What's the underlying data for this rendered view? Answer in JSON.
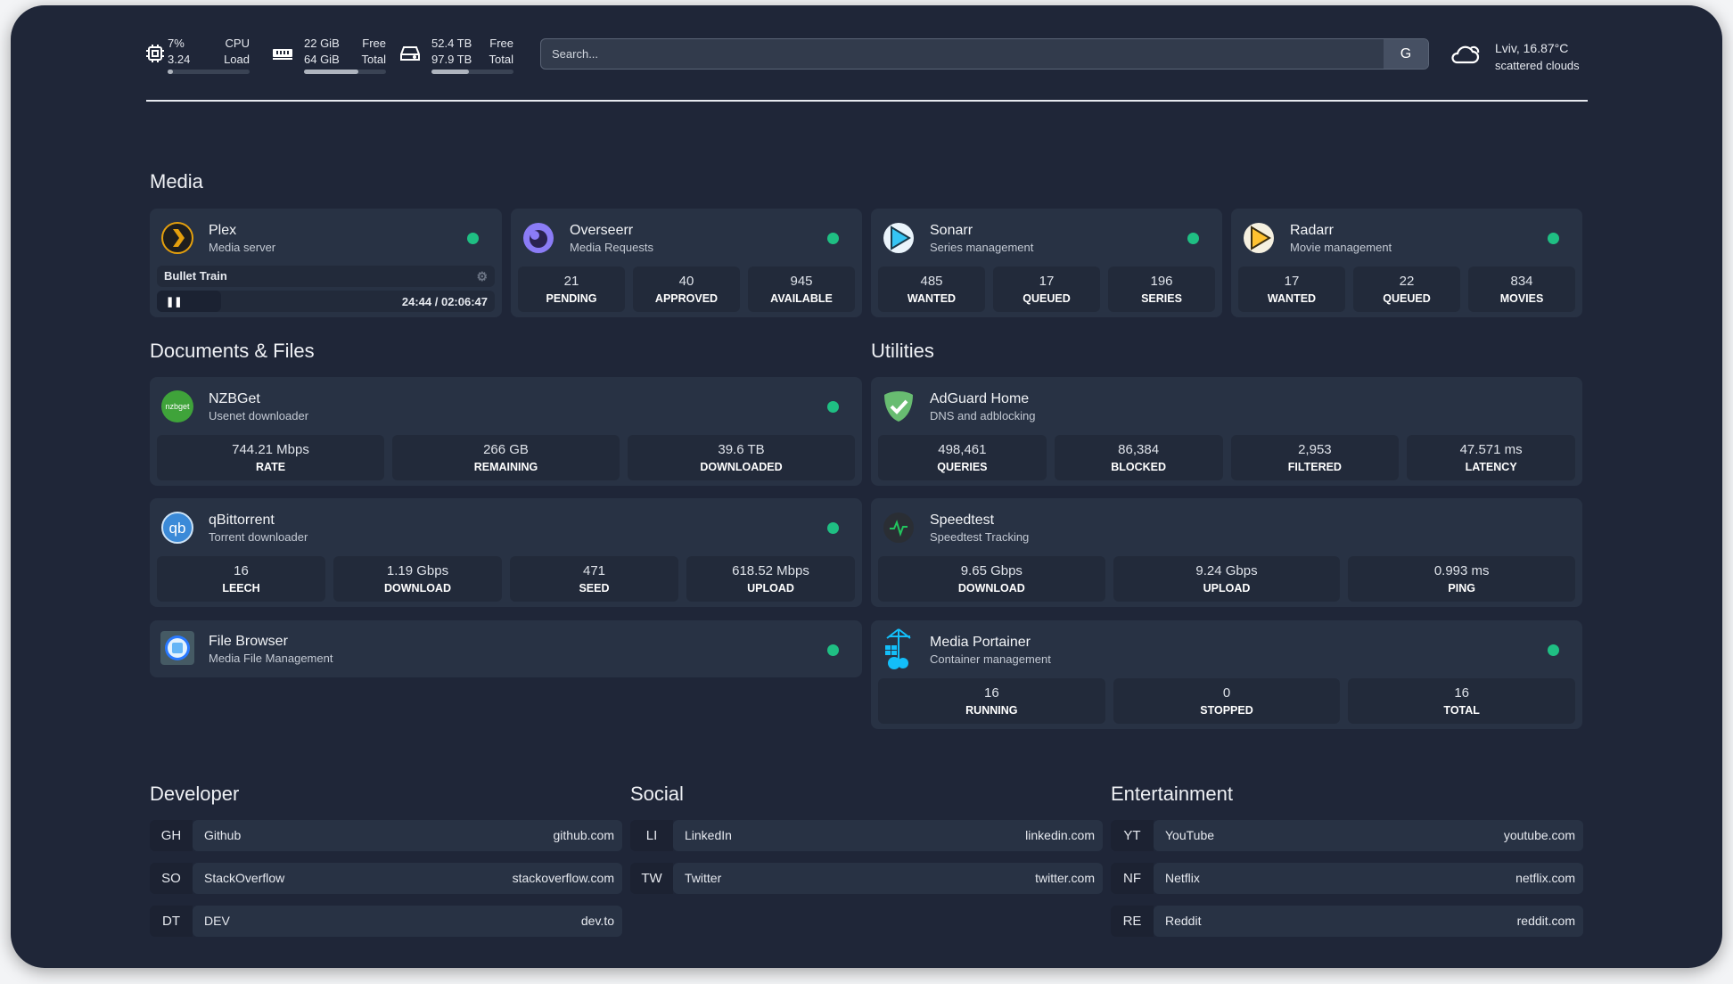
{
  "system": {
    "cpu": {
      "icon": "cpu-icon",
      "top_value": "7%",
      "top_label": "CPU",
      "bottom_value": "3.24",
      "bottom_label": "Load",
      "usage_percent": 7
    },
    "memory": {
      "icon": "memory-icon",
      "top_value": "22 GiB",
      "top_label": "Free",
      "bottom_value": "64 GiB",
      "bottom_label": "Total",
      "usage_percent": 66
    },
    "disk": {
      "icon": "disk-icon",
      "top_value": "52.4 TB",
      "top_label": "Free",
      "bottom_value": "97.9 TB",
      "bottom_label": "Total",
      "usage_percent": 46
    }
  },
  "search": {
    "placeholder": "Search...",
    "provider_label": "G"
  },
  "weather": {
    "icon": "cloud-icon",
    "location_temp": "Lviv, 16.87°C",
    "condition": "scattered clouds"
  },
  "status_color": "#1fbf83",
  "sections": {
    "media": "Media",
    "docs": "Documents & Files",
    "utilities": "Utilities",
    "developer": "Developer",
    "social": "Social",
    "entertainment": "Entertainment"
  },
  "media": [
    {
      "name": "Plex",
      "sub": "Media server",
      "now_playing": {
        "title": "Bullet Train",
        "time": "24:44 / 02:06:47",
        "progress_percent": 19
      }
    },
    {
      "name": "Overseerr",
      "sub": "Media Requests",
      "stats": [
        {
          "v": "21",
          "l": "PENDING"
        },
        {
          "v": "40",
          "l": "APPROVED"
        },
        {
          "v": "945",
          "l": "AVAILABLE"
        }
      ]
    },
    {
      "name": "Sonarr",
      "sub": "Series management",
      "stats": [
        {
          "v": "485",
          "l": "WANTED"
        },
        {
          "v": "17",
          "l": "QUEUED"
        },
        {
          "v": "196",
          "l": "SERIES"
        }
      ]
    },
    {
      "name": "Radarr",
      "sub": "Movie management",
      "stats": [
        {
          "v": "17",
          "l": "WANTED"
        },
        {
          "v": "22",
          "l": "QUEUED"
        },
        {
          "v": "834",
          "l": "MOVIES"
        }
      ]
    }
  ],
  "docs": [
    {
      "name": "NZBGet",
      "sub": "Usenet downloader",
      "icon_text": "nzbget",
      "stats": [
        {
          "v": "744.21 Mbps",
          "l": "RATE"
        },
        {
          "v": "266 GB",
          "l": "REMAINING"
        },
        {
          "v": "39.6 TB",
          "l": "DOWNLOADED"
        }
      ]
    },
    {
      "name": "qBittorrent",
      "sub": "Torrent downloader",
      "icon_text": "qb",
      "stats": [
        {
          "v": "16",
          "l": "LEECH"
        },
        {
          "v": "1.19 Gbps",
          "l": "DOWNLOAD"
        },
        {
          "v": "471",
          "l": "SEED"
        },
        {
          "v": "618.52 Mbps",
          "l": "UPLOAD"
        }
      ]
    },
    {
      "name": "File Browser",
      "sub": "Media File Management"
    }
  ],
  "utilities": [
    {
      "name": "AdGuard Home",
      "sub": "DNS and adblocking",
      "stats": [
        {
          "v": "498,461",
          "l": "QUERIES"
        },
        {
          "v": "86,384",
          "l": "BLOCKED"
        },
        {
          "v": "2,953",
          "l": "FILTERED"
        },
        {
          "v": "47.571 ms",
          "l": "LATENCY"
        }
      ]
    },
    {
      "name": "Speedtest",
      "sub": "Speedtest Tracking",
      "stats": [
        {
          "v": "9.65 Gbps",
          "l": "DOWNLOAD"
        },
        {
          "v": "9.24 Gbps",
          "l": "UPLOAD"
        },
        {
          "v": "0.993 ms",
          "l": "PING"
        }
      ]
    },
    {
      "name": "Media Portainer",
      "sub": "Container management",
      "stats": [
        {
          "v": "16",
          "l": "RUNNING"
        },
        {
          "v": "0",
          "l": "STOPPED"
        },
        {
          "v": "16",
          "l": "TOTAL"
        }
      ]
    }
  ],
  "bookmarks": {
    "developer": [
      {
        "abbr": "GH",
        "name": "Github",
        "url": "github.com"
      },
      {
        "abbr": "SO",
        "name": "StackOverflow",
        "url": "stackoverflow.com"
      },
      {
        "abbr": "DT",
        "name": "DEV",
        "url": "dev.to"
      }
    ],
    "social": [
      {
        "abbr": "LI",
        "name": "LinkedIn",
        "url": "linkedin.com"
      },
      {
        "abbr": "TW",
        "name": "Twitter",
        "url": "twitter.com"
      }
    ],
    "entertainment": [
      {
        "abbr": "YT",
        "name": "YouTube",
        "url": "youtube.com"
      },
      {
        "abbr": "NF",
        "name": "Netflix",
        "url": "netflix.com"
      },
      {
        "abbr": "RE",
        "name": "Reddit",
        "url": "reddit.com"
      }
    ]
  }
}
